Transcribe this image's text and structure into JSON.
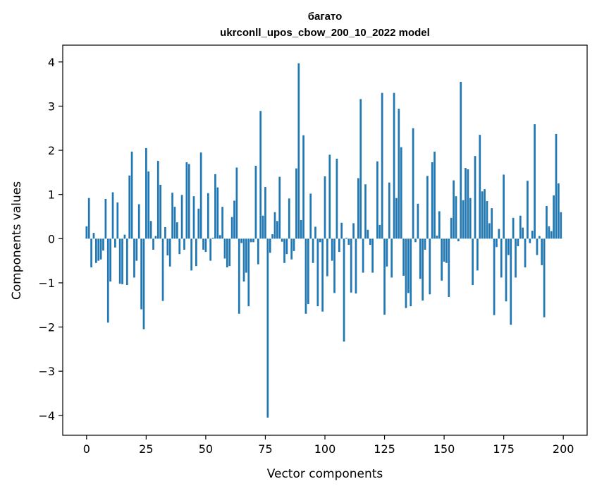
{
  "chart_data": {
    "type": "bar",
    "title": "багато",
    "subtitle": "ukrconll_upos_cbow_200_10_2022 model",
    "xlabel": "Vector components",
    "ylabel": "Components values",
    "xlim": [
      -10,
      210
    ],
    "ylim": [
      -4.45,
      4.38
    ],
    "x_ticks": [
      0,
      25,
      50,
      75,
      100,
      125,
      150,
      175,
      200
    ],
    "y_ticks": [
      -4,
      -3,
      -2,
      -1,
      0,
      1,
      2,
      3,
      4
    ],
    "x_tick_labels": [
      "0",
      "25",
      "50",
      "75",
      "100",
      "125",
      "150",
      "175",
      "200"
    ],
    "y_tick_labels": [
      "−4",
      "−3",
      "−2",
      "−1",
      "0",
      "1",
      "2",
      "3",
      "4"
    ],
    "bar_color": "#1f77b4",
    "grid": false,
    "values": [
      0.28,
      0.92,
      -0.65,
      0.13,
      -0.55,
      -0.5,
      -0.47,
      -0.27,
      0.9,
      -1.9,
      -0.97,
      1.05,
      -0.2,
      0.82,
      -1.02,
      -1.03,
      0.09,
      -1.05,
      1.43,
      1.97,
      -0.88,
      -0.5,
      0.78,
      -1.6,
      -2.05,
      2.05,
      1.52,
      0.4,
      -0.25,
      0.06,
      1.76,
      1.22,
      -1.41,
      0.26,
      -0.38,
      -0.63,
      1.04,
      0.72,
      0.37,
      -0.35,
      0.99,
      -0.25,
      1.73,
      1.69,
      -0.72,
      0.96,
      -0.62,
      0.68,
      1.95,
      -0.25,
      -0.3,
      1.03,
      -0.5,
      0.02,
      1.46,
      1.16,
      0.08,
      0.72,
      -0.45,
      -0.65,
      -0.62,
      0.49,
      0.86,
      1.61,
      -1.7,
      -0.1,
      -0.97,
      -0.77,
      -1.53,
      -0.08,
      -0.08,
      1.65,
      -0.58,
      2.89,
      0.52,
      1.17,
      -4.05,
      -0.32,
      0.1,
      0.6,
      0.4,
      1.4,
      -0.07,
      -0.55,
      -0.35,
      0.91,
      -0.47,
      -0.28,
      1.59,
      3.97,
      0.42,
      2.34,
      -1.7,
      -1.48,
      1.02,
      -0.55,
      0.27,
      -1.53,
      -0.08,
      -1.65,
      1.41,
      -0.85,
      1.9,
      -0.5,
      -1.23,
      1.81,
      -0.3,
      0.36,
      -2.33,
      0.02,
      -0.14,
      -1.22,
      0.35,
      -1.24,
      1.37,
      3.16,
      -0.77,
      1.23,
      0.2,
      -0.14,
      -0.77,
      0.0,
      1.75,
      0.31,
      3.3,
      -1.72,
      -0.63,
      1.27,
      -0.88,
      3.3,
      0.92,
      2.94,
      2.07,
      -0.84,
      -1.57,
      -1.23,
      -1.53,
      2.5,
      -0.08,
      0.79,
      -0.91,
      -1.4,
      -0.25,
      1.42,
      -1.26,
      1.73,
      1.97,
      0.07,
      0.62,
      -0.95,
      -0.52,
      -0.55,
      -1.32,
      0.47,
      1.32,
      0.96,
      -0.06,
      3.55,
      0.87,
      1.6,
      1.57,
      0.92,
      -1.05,
      1.87,
      -0.72,
      2.35,
      1.07,
      1.12,
      0.85,
      0.35,
      0.69,
      -1.73,
      -0.19,
      0.22,
      -0.88,
      1.45,
      -1.42,
      -0.37,
      -1.95,
      0.47,
      -0.88,
      -0.17,
      0.52,
      0.25,
      -0.65,
      1.31,
      -0.1,
      0.18,
      2.59,
      -0.37,
      0.06,
      -0.6,
      -1.78,
      0.74,
      0.28,
      0.17,
      0.98,
      2.37,
      1.25,
      0.6
    ]
  }
}
